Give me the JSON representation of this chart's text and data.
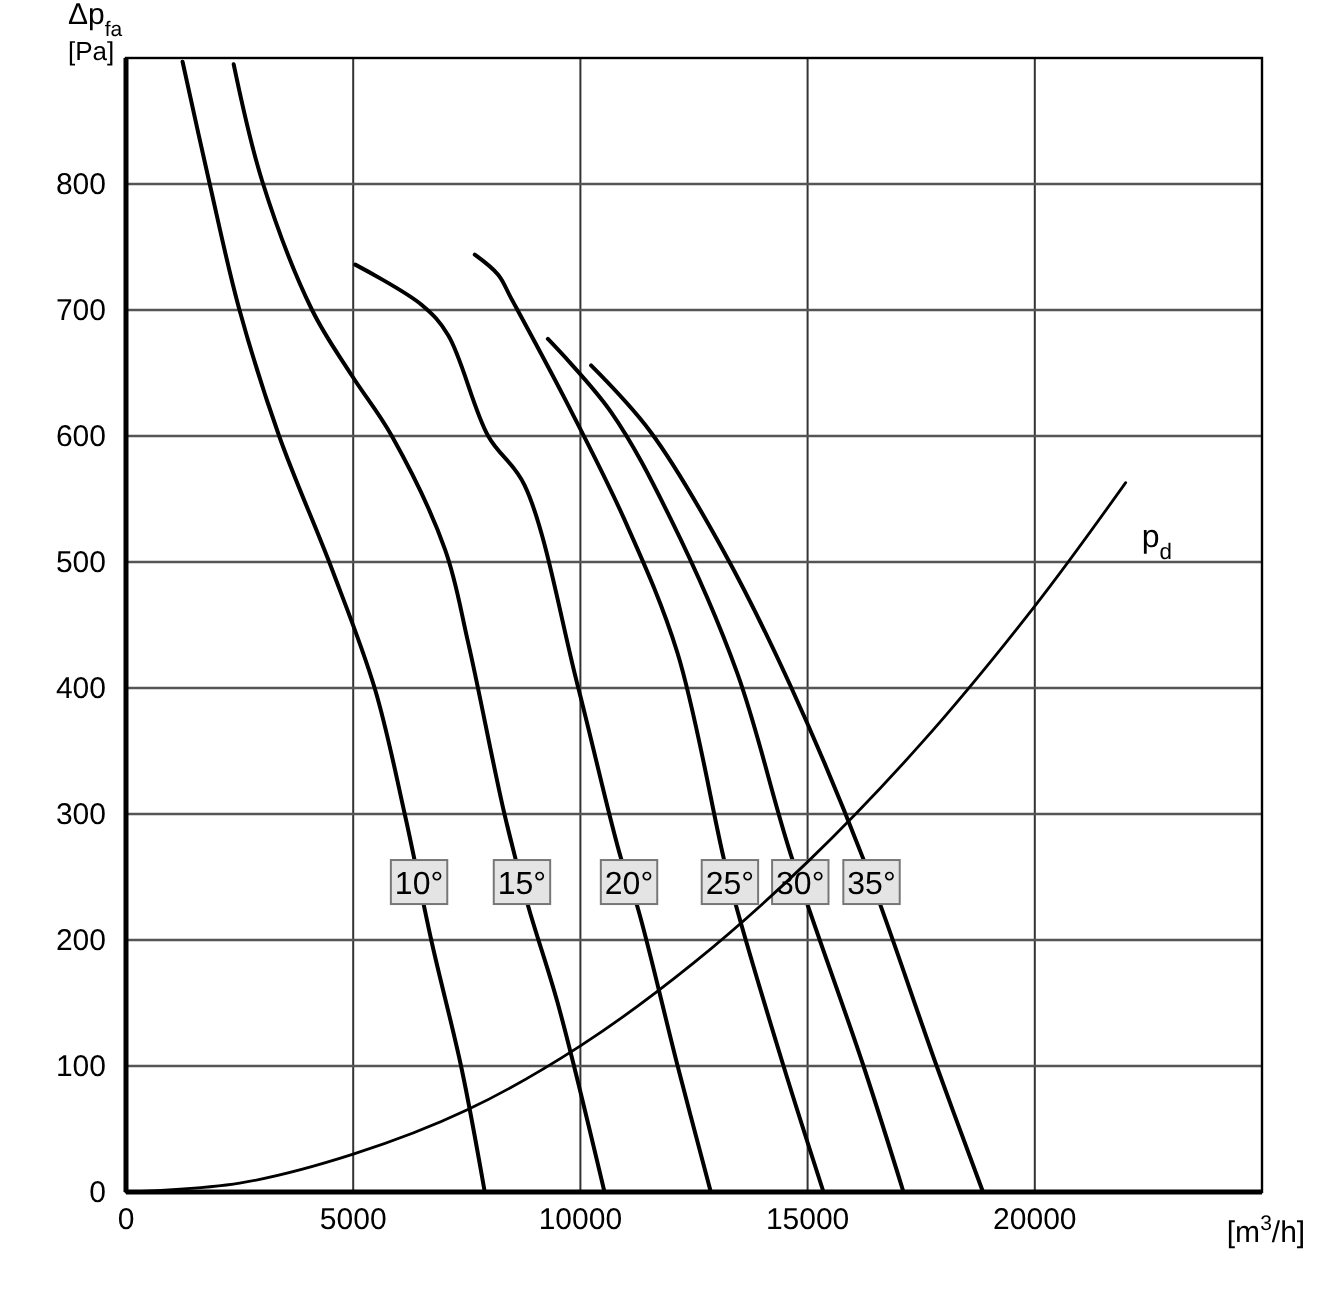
{
  "chart_data": {
    "type": "line",
    "xlabel": "[m$^{3}$/h]",
    "ylabel": "Δp$_{fa}$ [Pa]",
    "xlim": [
      0,
      25000
    ],
    "ylim": [
      0,
      900
    ],
    "xticks": [
      0,
      5000,
      10000,
      15000,
      20000
    ],
    "yticks": [
      0,
      100,
      200,
      300,
      400,
      500,
      600,
      700,
      800
    ],
    "grid": true,
    "series": [
      {
        "name": "10°",
        "color": "#000000",
        "x": [
          1245,
          1830,
          2490,
          3370,
          4535,
          5480,
          6140,
          6730,
          7385,
          7895
        ],
        "values": [
          897,
          802,
          701,
          600,
          494,
          399,
          299,
          198,
          98,
          0
        ]
      },
      {
        "name": "15°",
        "color": "#000000",
        "x": [
          2370,
          3000,
          4095,
          4970,
          5850,
          7020,
          7530,
          8335,
          8850,
          9500,
          10530
        ],
        "values": [
          895,
          802,
          700,
          648,
          600,
          510,
          436,
          299,
          227,
          150,
          0
        ]
      },
      {
        "name": "20°",
        "color": "#000000",
        "x": [
          5045,
          6510,
          7090,
          7970,
          8770,
          9940,
          10900,
          11250,
          12140,
          12870
        ],
        "values": [
          736,
          704,
          680,
          600,
          561,
          402,
          264,
          227,
          100,
          0
        ]
      },
      {
        "name": "25°",
        "color": "#000000",
        "x": [
          7675,
          8190,
          8480,
          9650,
          10965,
          12135,
          13160,
          13450,
          14470,
          15350
        ],
        "values": [
          744,
          728,
          709,
          630,
          534,
          428,
          264,
          224,
          100,
          0
        ]
      },
      {
        "name": "30°",
        "color": "#000000",
        "x": [
          9285,
          10675,
          11990,
          13450,
          14620,
          16230,
          17110
        ],
        "values": [
          677,
          619,
          534,
          412,
          269,
          100,
          0
        ]
      },
      {
        "name": "35°",
        "color": "#000000",
        "x": [
          10235,
          11550,
          13160,
          14620,
          16230,
          17840,
          18860
        ],
        "values": [
          656,
          603,
          508,
          402,
          264,
          100,
          0
        ]
      },
      {
        "name": "p$_{d}$",
        "color": "#000000",
        "x": [
          0,
          2500,
          5000,
          7500,
          10000,
          12500,
          15000,
          17500,
          20000,
          22000
        ],
        "values": [
          0,
          7,
          30,
          65,
          116,
          182,
          262,
          356,
          465,
          563
        ]
      }
    ]
  }
}
